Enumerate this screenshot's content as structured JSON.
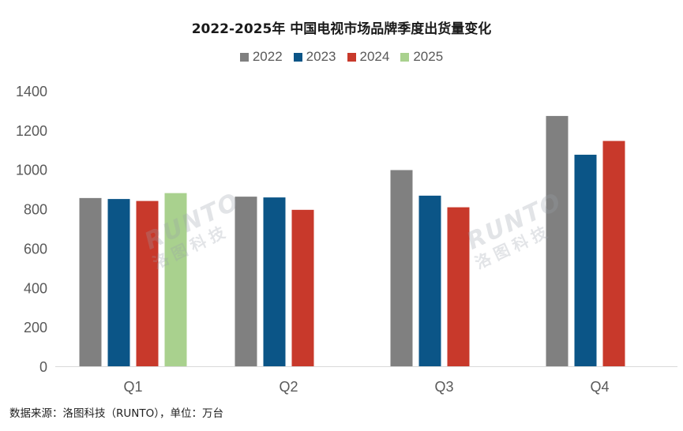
{
  "chart_data": {
    "type": "bar",
    "title": "2022-2025年 中国电视市场品牌季度出货量变化",
    "categories": [
      "Q1",
      "Q2",
      "Q3",
      "Q4"
    ],
    "series": [
      {
        "name": "2022",
        "color": "#808080",
        "values": [
          855,
          862,
          997,
          1272
        ]
      },
      {
        "name": "2023",
        "color": "#0b5587",
        "values": [
          850,
          858,
          867,
          1075
        ]
      },
      {
        "name": "2024",
        "color": "#c8392b",
        "values": [
          840,
          795,
          808,
          1145
        ]
      },
      {
        "name": "2025",
        "color": "#a9d18e",
        "values": [
          880,
          null,
          null,
          null
        ]
      }
    ],
    "ylim": [
      0,
      1400
    ],
    "yticks": [
      0,
      200,
      400,
      600,
      800,
      1000,
      1200,
      1400
    ],
    "xlabel": "",
    "ylabel": "",
    "grid": false,
    "legend_position": "top"
  },
  "watermark": {
    "en": "RUNTO",
    "cn": "洛图科技"
  },
  "source_note": "数据来源：洛图科技（RUNTO），单位：万台"
}
